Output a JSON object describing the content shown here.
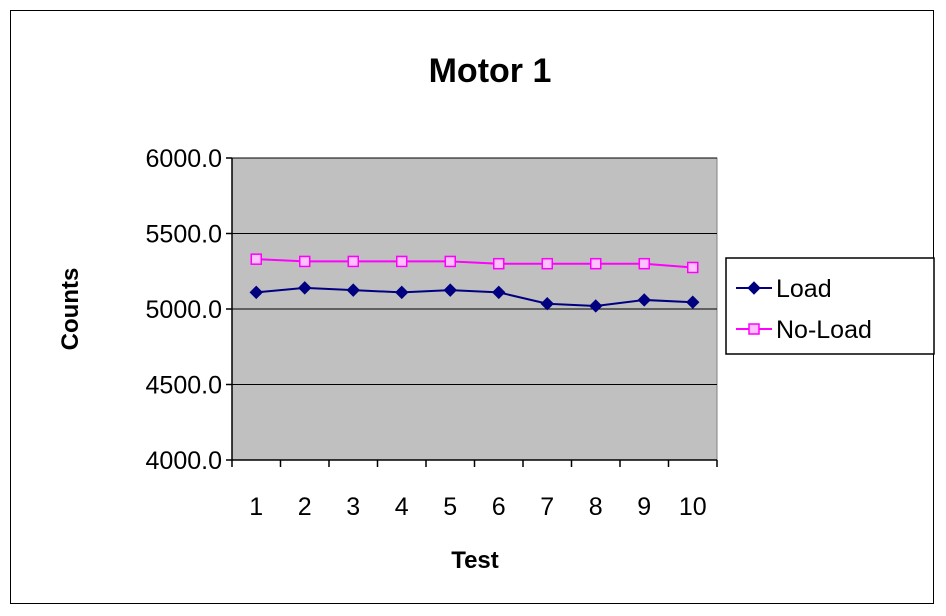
{
  "chart_data": {
    "type": "line",
    "title": "Motor 1",
    "xlabel": "Test",
    "ylabel": "Counts",
    "categories": [
      "1",
      "2",
      "3",
      "4",
      "5",
      "6",
      "7",
      "8",
      "9",
      "10"
    ],
    "ylim": [
      4000,
      6000
    ],
    "yticks": [
      4000,
      4500,
      5000,
      5500,
      6000
    ],
    "ytick_labels": [
      "4000.0",
      "4500.0",
      "5000.0",
      "5500.0",
      "6000.0"
    ],
    "grid": true,
    "legend_position": "right",
    "plot_background": "#c0c0c0",
    "series": [
      {
        "name": "Load",
        "color": "#000080",
        "marker": "diamond",
        "values": [
          5110,
          5140,
          5125,
          5110,
          5125,
          5110,
          5035,
          5020,
          5060,
          5045
        ]
      },
      {
        "name": "No-Load",
        "color": "#ff00ff",
        "marker": "square",
        "values": [
          5330,
          5315,
          5315,
          5315,
          5315,
          5300,
          5300,
          5300,
          5300,
          5275
        ]
      }
    ]
  }
}
